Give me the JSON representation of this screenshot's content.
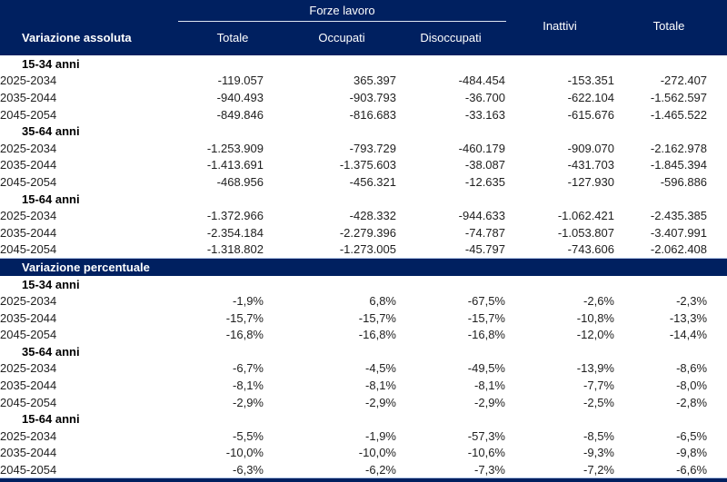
{
  "colors": {
    "header_navy": "#002060",
    "header_text": "#ffffff",
    "body_text": "#1f1f1f",
    "separator_light_blue": "#b3c6e7",
    "group_underline": "#dce6f2"
  },
  "header": {
    "left_label": "Variazione assoluta",
    "group_label": "Forze lavoro",
    "sub_columns": [
      "Totale",
      "Occupati",
      "Disoccupati"
    ],
    "columns_right": [
      "Inattivi",
      "Totale"
    ]
  },
  "chart_data": {
    "type": "table",
    "title": "",
    "column_groups": [
      {
        "label": "Forze lavoro",
        "columns": [
          "Totale",
          "Occupati",
          "Disoccupati"
        ]
      },
      {
        "label": "Inattivi"
      },
      {
        "label": "Totale"
      }
    ],
    "panels": [
      {
        "label": "Variazione assoluta",
        "sections": [
          {
            "label": "15-34 anni",
            "rows": [
              {
                "label": "2025-2034",
                "values": [
                  "-119.057",
                  "365.397",
                  "-484.454",
                  "-153.351",
                  "-272.407"
                ]
              },
              {
                "label": "2035-2044",
                "values": [
                  "-940.493",
                  "-903.793",
                  "-36.700",
                  "-622.104",
                  "-1.562.597"
                ]
              },
              {
                "label": "2045-2054",
                "values": [
                  "-849.846",
                  "-816.683",
                  "-33.163",
                  "-615.676",
                  "-1.465.522"
                ]
              }
            ]
          },
          {
            "label": "35-64 anni",
            "rows": [
              {
                "label": "2025-2034",
                "values": [
                  "-1.253.909",
                  "-793.729",
                  "-460.179",
                  "-909.070",
                  "-2.162.978"
                ]
              },
              {
                "label": "2035-2044",
                "values": [
                  "-1.413.691",
                  "-1.375.603",
                  "-38.087",
                  "-431.703",
                  "-1.845.394"
                ]
              },
              {
                "label": "2045-2054",
                "values": [
                  "-468.956",
                  "-456.321",
                  "-12.635",
                  "-127.930",
                  "-596.886"
                ]
              }
            ]
          },
          {
            "label": "15-64 anni",
            "rows": [
              {
                "label": "2025-2034",
                "values": [
                  "-1.372.966",
                  "-428.332",
                  "-944.633",
                  "-1.062.421",
                  "-2.435.385"
                ]
              },
              {
                "label": "2035-2044",
                "values": [
                  "-2.354.184",
                  "-2.279.396",
                  "-74.787",
                  "-1.053.807",
                  "-3.407.991"
                ]
              },
              {
                "label": "2045-2054",
                "values": [
                  "-1.318.802",
                  "-1.273.005",
                  "-45.797",
                  "-743.606",
                  "-2.062.408"
                ]
              }
            ]
          }
        ]
      },
      {
        "label": "Variazione percentuale",
        "sections": [
          {
            "label": "15-34 anni",
            "rows": [
              {
                "label": "2025-2034",
                "values": [
                  "-1,9%",
                  "6,8%",
                  "-67,5%",
                  "-2,6%",
                  "-2,3%"
                ]
              },
              {
                "label": "2035-2044",
                "values": [
                  "-15,7%",
                  "-15,7%",
                  "-15,7%",
                  "-10,8%",
                  "-13,3%"
                ]
              },
              {
                "label": "2045-2054",
                "values": [
                  "-16,8%",
                  "-16,8%",
                  "-16,8%",
                  "-12,0%",
                  "-14,4%"
                ]
              }
            ]
          },
          {
            "label": "35-64 anni",
            "rows": [
              {
                "label": "2025-2034",
                "values": [
                  "-6,7%",
                  "-4,5%",
                  "-49,5%",
                  "-13,9%",
                  "-8,6%"
                ]
              },
              {
                "label": "2035-2044",
                "values": [
                  "-8,1%",
                  "-8,1%",
                  "-8,1%",
                  "-7,7%",
                  "-8,0%"
                ]
              },
              {
                "label": "2045-2054",
                "values": [
                  "-2,9%",
                  "-2,9%",
                  "-2,9%",
                  "-2,5%",
                  "-2,8%"
                ]
              }
            ]
          },
          {
            "label": "15-64 anni",
            "rows": [
              {
                "label": "2025-2034",
                "values": [
                  "-5,5%",
                  "-1,9%",
                  "-57,3%",
                  "-8,5%",
                  "-6,5%"
                ]
              },
              {
                "label": "2035-2044",
                "values": [
                  "-10,0%",
                  "-10,0%",
                  "-10,6%",
                  "-9,3%",
                  "-9,8%"
                ]
              },
              {
                "label": "2045-2054",
                "values": [
                  "-6,3%",
                  "-6,2%",
                  "-7,3%",
                  "-7,2%",
                  "-6,6%"
                ]
              }
            ]
          }
        ]
      }
    ]
  }
}
